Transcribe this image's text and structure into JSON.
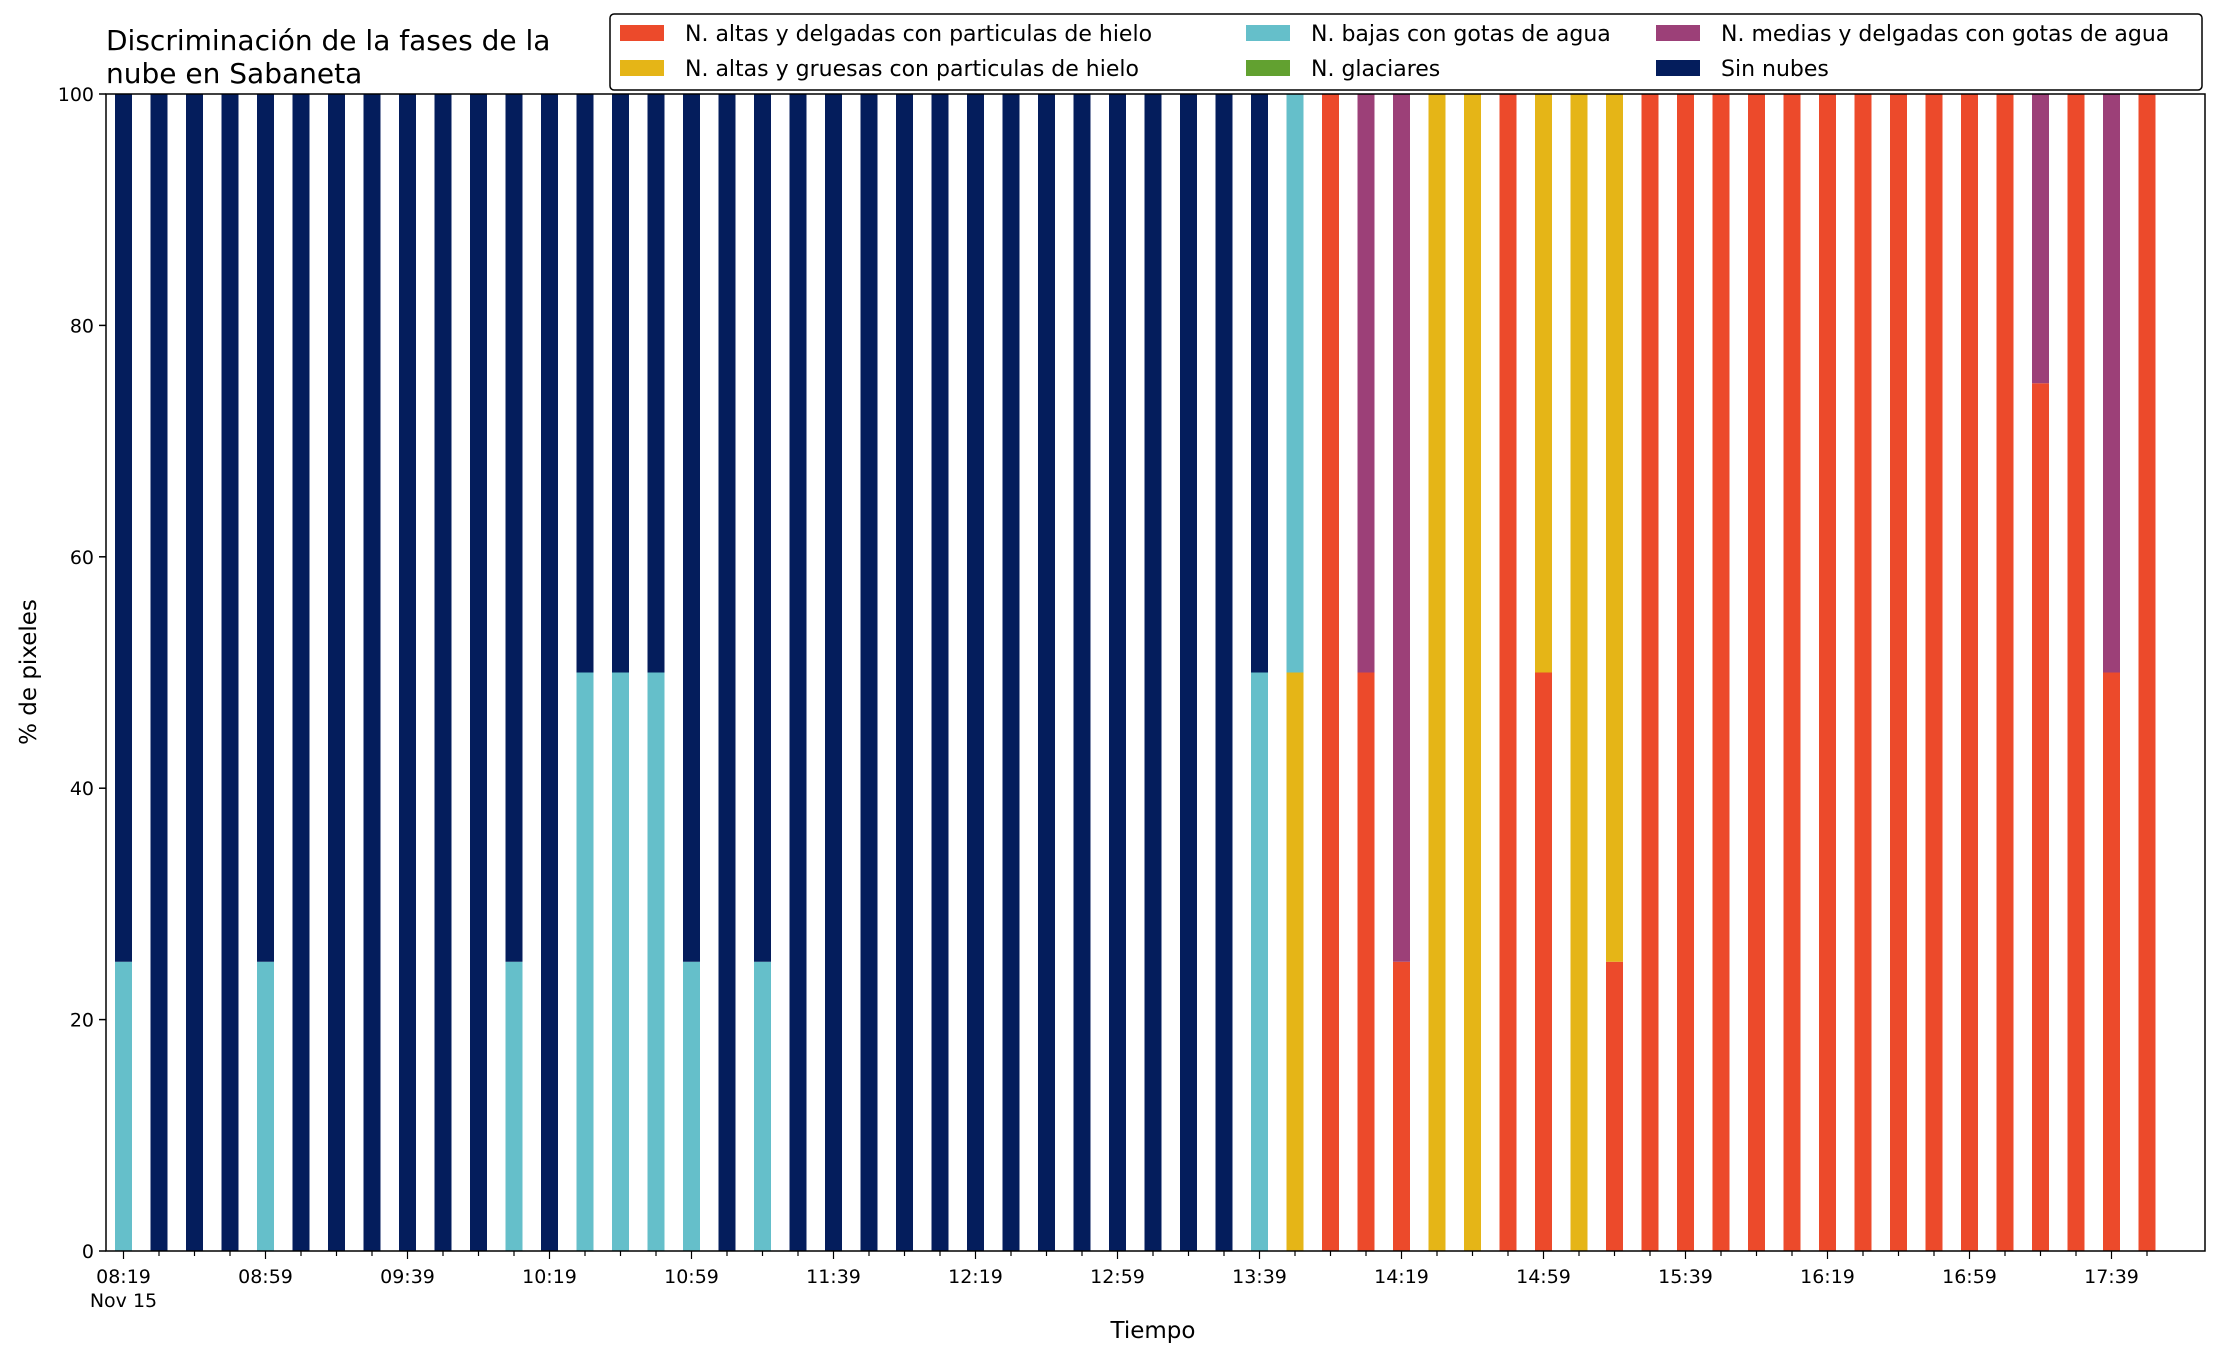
{
  "chart_data": {
    "type": "bar",
    "stacked": true,
    "title": "Discriminación de la fases de la nube en Sabaneta",
    "title_lines": [
      "Discriminación de la fases de la",
      "nube en Sabaneta"
    ],
    "xlabel": "Tiempo",
    "ylabel": "% de pixeles",
    "ylim": [
      0,
      100
    ],
    "yticks": [
      0,
      20,
      40,
      60,
      80,
      100
    ],
    "x_tick_labels": [
      "08:19",
      "08:59",
      "09:39",
      "10:19",
      "10:59",
      "11:39",
      "12:19",
      "12:59",
      "13:39",
      "14:19",
      "14:59",
      "15:39",
      "16:19",
      "16:59",
      "17:39"
    ],
    "x_date_label": "Nov 15",
    "interval_minutes": 10,
    "legend_position": "top-right",
    "categories": [
      "08:19",
      "08:29",
      "08:39",
      "08:49",
      "08:59",
      "09:09",
      "09:19",
      "09:29",
      "09:39",
      "09:49",
      "09:59",
      "10:09",
      "10:19",
      "10:29",
      "10:39",
      "10:49",
      "10:59",
      "11:09",
      "11:19",
      "11:29",
      "11:39",
      "11:49",
      "11:59",
      "12:09",
      "12:19",
      "12:29",
      "12:39",
      "12:49",
      "12:59",
      "13:09",
      "13:19",
      "13:29",
      "13:39",
      "13:49",
      "13:59",
      "14:09",
      "14:19",
      "14:29",
      "14:39",
      "14:49",
      "14:59",
      "15:09",
      "15:19",
      "15:29",
      "15:39",
      "15:49",
      "15:59",
      "16:09",
      "16:19",
      "16:29",
      "16:39",
      "16:49",
      "16:59",
      "17:09",
      "17:19",
      "17:29",
      "17:39",
      "17:49"
    ],
    "series": [
      {
        "name": "N. altas y delgadas con particulas de hielo",
        "color": "#ec4a2b",
        "values": [
          0,
          0,
          0,
          0,
          0,
          0,
          0,
          0,
          0,
          0,
          0,
          0,
          0,
          0,
          0,
          0,
          0,
          0,
          0,
          0,
          0,
          0,
          0,
          0,
          0,
          0,
          0,
          0,
          0,
          0,
          0,
          0,
          0,
          0,
          100,
          50,
          25,
          0,
          0,
          100,
          50,
          0,
          25,
          100,
          100,
          100,
          100,
          100,
          100,
          100,
          100,
          100,
          100,
          100,
          75,
          100,
          50,
          100
        ]
      },
      {
        "name": "N. altas y gruesas con particulas de hielo",
        "color": "#e5b517",
        "values": [
          0,
          0,
          0,
          0,
          0,
          0,
          0,
          0,
          0,
          0,
          0,
          0,
          0,
          0,
          0,
          0,
          0,
          0,
          0,
          0,
          0,
          0,
          0,
          0,
          0,
          0,
          0,
          0,
          0,
          0,
          0,
          0,
          0,
          50,
          0,
          0,
          0,
          100,
          100,
          0,
          50,
          100,
          75,
          0,
          0,
          0,
          0,
          0,
          0,
          0,
          0,
          0,
          0,
          0,
          0,
          0,
          0,
          0
        ]
      },
      {
        "name": "N. bajas con gotas de agua",
        "color": "#65bfca",
        "values": [
          25,
          0,
          0,
          0,
          25,
          0,
          0,
          0,
          0,
          0,
          0,
          25,
          0,
          50,
          50,
          50,
          25,
          0,
          25,
          0,
          0,
          0,
          0,
          0,
          0,
          0,
          0,
          0,
          0,
          0,
          0,
          0,
          50,
          50,
          0,
          0,
          0,
          0,
          0,
          0,
          0,
          0,
          0,
          0,
          0,
          0,
          0,
          0,
          0,
          0,
          0,
          0,
          0,
          0,
          0,
          0,
          0,
          0
        ]
      },
      {
        "name": "N. glaciares",
        "color": "#62a130",
        "values": [
          0,
          0,
          0,
          0,
          0,
          0,
          0,
          0,
          0,
          0,
          0,
          0,
          0,
          0,
          0,
          0,
          0,
          0,
          0,
          0,
          0,
          0,
          0,
          0,
          0,
          0,
          0,
          0,
          0,
          0,
          0,
          0,
          0,
          0,
          0,
          0,
          0,
          0,
          0,
          0,
          0,
          0,
          0,
          0,
          0,
          0,
          0,
          0,
          0,
          0,
          0,
          0,
          0,
          0,
          0,
          0,
          0,
          0
        ]
      },
      {
        "name": "N. medias y delgadas con gotas de agua",
        "color": "#9c4078",
        "values": [
          0,
          0,
          0,
          0,
          0,
          0,
          0,
          0,
          0,
          0,
          0,
          0,
          0,
          0,
          0,
          0,
          0,
          0,
          0,
          0,
          0,
          0,
          0,
          0,
          0,
          0,
          0,
          0,
          0,
          0,
          0,
          0,
          0,
          0,
          0,
          50,
          75,
          0,
          0,
          0,
          0,
          0,
          0,
          0,
          0,
          0,
          0,
          0,
          0,
          0,
          0,
          0,
          0,
          0,
          25,
          0,
          50,
          0
        ]
      },
      {
        "name": "Sin nubes",
        "color": "#041d5c",
        "values": [
          75,
          100,
          100,
          100,
          75,
          100,
          100,
          100,
          100,
          100,
          100,
          75,
          100,
          50,
          50,
          50,
          75,
          100,
          75,
          100,
          100,
          100,
          100,
          100,
          100,
          100,
          100,
          100,
          100,
          100,
          100,
          100,
          50,
          0,
          0,
          0,
          0,
          0,
          0,
          0,
          0,
          0,
          0,
          0,
          0,
          0,
          0,
          0,
          0,
          0,
          0,
          0,
          0,
          0,
          0,
          0,
          0,
          0
        ]
      }
    ]
  }
}
